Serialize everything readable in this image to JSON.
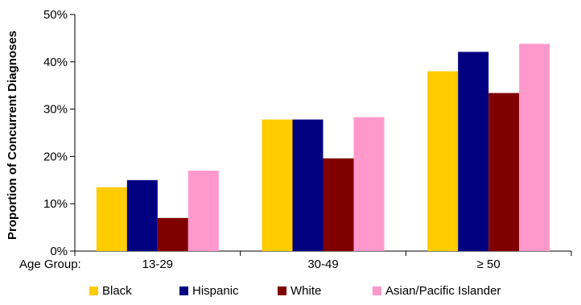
{
  "chart_data": {
    "type": "bar",
    "title": "",
    "xlabel": "Age Group:",
    "ylabel": "Proportion of Concurrent Diagnoses",
    "categories": [
      "13-29",
      "30-49",
      "≥ 50"
    ],
    "series": [
      {
        "name": "Black",
        "color": "#FFCC00",
        "values": [
          13.5,
          27.8,
          38.0
        ]
      },
      {
        "name": "Hispanic",
        "color": "#000080",
        "values": [
          15.0,
          27.8,
          42.1
        ]
      },
      {
        "name": "White",
        "color": "#800000",
        "values": [
          7.0,
          19.6,
          33.4
        ]
      },
      {
        "name": "Asian/Pacific Islander",
        "color": "#FF99CC",
        "values": [
          17.0,
          28.3,
          43.8
        ]
      }
    ],
    "ylim": [
      0,
      50
    ],
    "yticks": [
      0,
      10,
      20,
      30,
      40,
      50
    ],
    "ytick_labels": [
      "0%",
      "10%",
      "20%",
      "30%",
      "40%",
      "50%"
    ],
    "grid": false,
    "legend_position": "bottom"
  }
}
